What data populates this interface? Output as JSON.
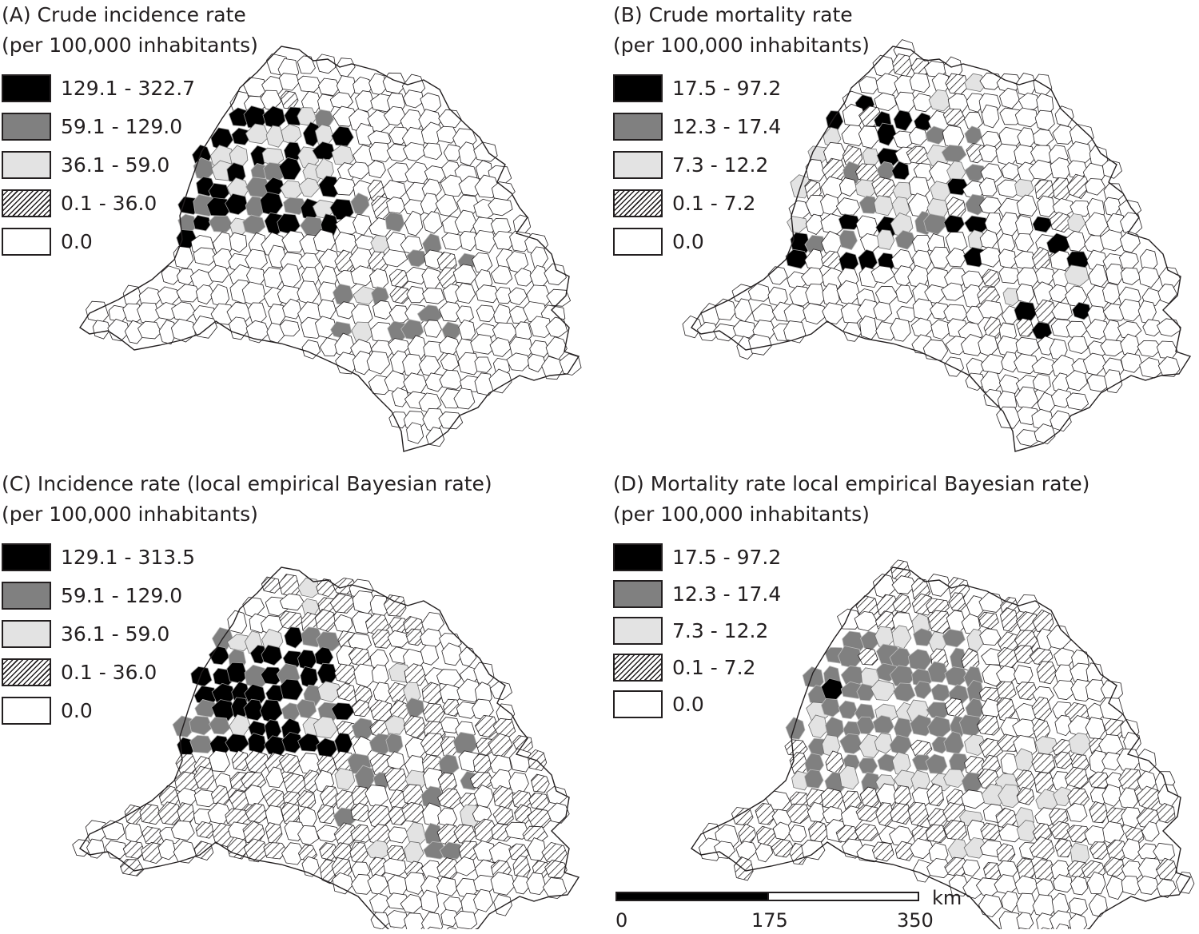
{
  "panels": [
    {
      "title_line1": "(A) Crude incidence rate",
      "title_line2": "(per 100,000 inhabitants)",
      "legend": [
        {
          "label": "129.1 - 322.7",
          "fill": "#000000"
        },
        {
          "label": "59.1 - 129.0",
          "fill": "#808080"
        },
        {
          "label": "36.1 - 59.0",
          "fill": "#e3e3e3"
        },
        {
          "label": "0.1 - 36.0",
          "fill": "hatch"
        },
        {
          "label": "0.0",
          "fill": "#ffffff"
        }
      ]
    },
    {
      "title_line1": "(B) Crude mortality rate",
      "title_line2": "(per 100,000 inhabitants)",
      "legend": [
        {
          "label": "17.5 - 97.2",
          "fill": "#000000"
        },
        {
          "label": "12.3 - 17.4",
          "fill": "#808080"
        },
        {
          "label": "7.3 - 12.2",
          "fill": "#e3e3e3"
        },
        {
          "label": "0.1 - 7.2",
          "fill": "hatch"
        },
        {
          "label": "0.0",
          "fill": "#ffffff"
        }
      ]
    },
    {
      "title_line1": "(C) Incidence rate (local empirical Bayesian rate)",
      "title_line2": "(per 100,000 inhabitants)",
      "legend": [
        {
          "label": "129.1 - 313.5",
          "fill": "#000000"
        },
        {
          "label": "59.1 - 129.0",
          "fill": "#808080"
        },
        {
          "label": "36.1 - 59.0",
          "fill": "#e3e3e3"
        },
        {
          "label": "0.1 - 36.0",
          "fill": "hatch"
        },
        {
          "label": "0.0",
          "fill": "#ffffff"
        }
      ]
    },
    {
      "title_line1": "(D) Mortality rate local empirical Bayesian rate)",
      "title_line2": "(per 100,000 inhabitants)",
      "legend": [
        {
          "label": "17.5 - 97.2",
          "fill": "#000000"
        },
        {
          "label": "12.3 - 17.4",
          "fill": "#808080"
        },
        {
          "label": "7.3 - 12.2",
          "fill": "#e3e3e3"
        },
        {
          "label": "0.1 - 7.2",
          "fill": "hatch"
        },
        {
          "label": "0.0",
          "fill": "#ffffff"
        }
      ]
    }
  ],
  "scale": {
    "unit": "km",
    "ticks": [
      "0",
      "175",
      "350"
    ]
  }
}
